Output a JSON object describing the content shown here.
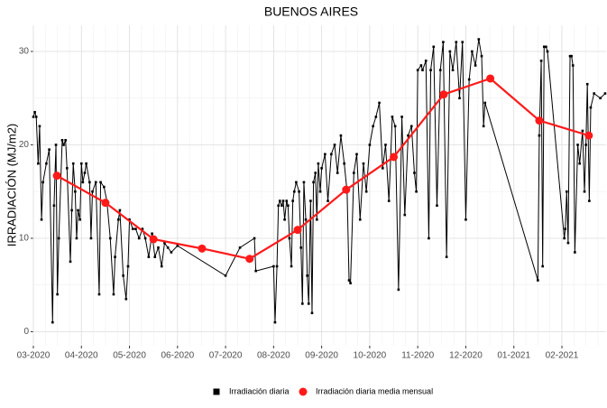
{
  "chart_data": {
    "type": "line",
    "title": "BUENOS AIRES",
    "y_label": "IRRADIACIÓN (MJ/m2)",
    "xlim": [
      0,
      11.92
    ],
    "ylim": [
      -1.5,
      32.8
    ],
    "grid": true,
    "legend": "bottom",
    "xticks": [
      {
        "value": 0,
        "label": "03-2020"
      },
      {
        "value": 1,
        "label": "04-2020"
      },
      {
        "value": 2,
        "label": "05-2020"
      },
      {
        "value": 3,
        "label": "06-2020"
      },
      {
        "value": 4,
        "label": "07-2020"
      },
      {
        "value": 5,
        "label": "08-2020"
      },
      {
        "value": 6,
        "label": "09-2020"
      },
      {
        "value": 7,
        "label": "10-2020"
      },
      {
        "value": 8,
        "label": "11-2020"
      },
      {
        "value": 9,
        "label": "12-2020"
      },
      {
        "value": 10,
        "label": "01-2021"
      },
      {
        "value": 11,
        "label": "02-2021"
      }
    ],
    "yticks": [
      0,
      10,
      20,
      30
    ],
    "series": [
      {
        "name": "Irradiación diaria",
        "color": "#000000",
        "marker": "square",
        "x": [
          0.0,
          0.03,
          0.06,
          0.1,
          0.13,
          0.17,
          0.2,
          0.27,
          0.33,
          0.4,
          0.43,
          0.47,
          0.5,
          0.53,
          0.6,
          0.63,
          0.67,
          0.7,
          0.77,
          0.8,
          0.83,
          0.87,
          0.9,
          0.93,
          0.97,
          1.0,
          1.03,
          1.07,
          1.1,
          1.17,
          1.2,
          1.23,
          1.3,
          1.37,
          1.4,
          1.47,
          1.53,
          1.6,
          1.67,
          1.7,
          1.77,
          1.8,
          1.87,
          1.93,
          1.97,
          2.0,
          2.07,
          2.13,
          2.2,
          2.27,
          2.33,
          2.4,
          2.47,
          2.53,
          2.6,
          2.67,
          2.73,
          2.8,
          2.87,
          3.0,
          4.0,
          4.3,
          4.6,
          4.63,
          5.0,
          5.03,
          5.07,
          5.1,
          5.13,
          5.17,
          5.2,
          5.23,
          5.27,
          5.3,
          5.33,
          5.37,
          5.4,
          5.43,
          5.47,
          5.53,
          5.57,
          5.6,
          5.63,
          5.67,
          5.7,
          5.73,
          5.77,
          5.8,
          5.83,
          5.87,
          5.9,
          5.93,
          5.97,
          6.0,
          6.07,
          6.13,
          6.2,
          6.27,
          6.33,
          6.4,
          6.47,
          6.53,
          6.57,
          6.6,
          6.67,
          6.73,
          6.8,
          6.87,
          6.93,
          7.0,
          7.07,
          7.13,
          7.2,
          7.27,
          7.33,
          7.4,
          7.47,
          7.53,
          7.6,
          7.67,
          7.73,
          7.8,
          7.87,
          7.93,
          7.97,
          8.0,
          8.07,
          8.1,
          8.17,
          8.23,
          8.27,
          8.33,
          8.4,
          8.47,
          8.53,
          8.6,
          8.67,
          8.73,
          8.8,
          8.87,
          8.93,
          9.0,
          9.07,
          9.13,
          9.2,
          9.27,
          9.33,
          9.37,
          9.4,
          10.5,
          10.53,
          10.57,
          10.6,
          10.63,
          10.67,
          10.7,
          11.05,
          11.07,
          11.1,
          11.13,
          11.17,
          11.2,
          11.23,
          11.27,
          11.33,
          11.37,
          11.43,
          11.47,
          11.5,
          11.53,
          11.57,
          11.6,
          11.67,
          11.8,
          11.9
        ],
        "values": [
          23,
          23.5,
          23,
          18,
          22,
          12,
          16,
          18,
          19.5,
          1,
          13.5,
          20,
          4,
          10,
          20.5,
          20,
          20.5,
          17.5,
          7.5,
          13,
          18,
          15,
          10,
          13,
          12,
          18,
          16,
          17,
          18,
          16,
          10,
          15,
          16,
          4,
          16,
          15.5,
          14,
          10,
          4,
          8,
          12,
          13,
          6,
          3.5,
          7,
          12,
          11,
          11,
          10,
          11,
          10,
          8,
          10.5,
          8,
          9,
          7,
          9.5,
          9,
          8.5,
          9.2,
          6,
          9,
          10,
          6.5,
          7,
          1,
          7,
          13.5,
          14,
          13.5,
          14,
          12,
          14,
          13.5,
          10,
          7,
          14,
          15,
          16,
          15,
          9,
          3,
          16,
          12,
          6,
          3,
          14,
          2,
          16,
          17,
          12,
          18,
          15,
          17.5,
          19,
          14,
          19,
          20,
          17,
          21,
          18,
          15,
          5.5,
          5.2,
          17,
          19,
          12,
          18,
          15,
          20,
          22,
          23,
          24.5,
          17.5,
          20,
          14,
          23,
          22,
          4.5,
          23,
          12.5,
          21,
          22,
          17,
          15,
          28,
          28.5,
          28,
          29,
          10,
          28,
          30.5,
          13.5,
          28,
          31,
          8,
          30,
          28,
          31,
          25,
          31,
          12,
          27,
          30,
          28.5,
          31.3,
          29.5,
          22,
          24.5,
          5.5,
          21,
          29,
          7,
          30.5,
          30.5,
          30,
          10,
          11,
          15,
          9.5,
          29.5,
          29.5,
          28.5,
          8.5,
          20,
          18,
          21.5,
          15,
          20,
          26.5,
          14,
          24,
          25.5,
          25,
          25.5
        ]
      },
      {
        "name": "Irradiación diaria media mensual",
        "color": "#ff1a1a",
        "marker": "circle",
        "x": [
          0.49,
          1.5,
          2.5,
          3.51,
          4.5,
          5.5,
          6.51,
          7.5,
          8.54,
          9.51,
          10.53,
          11.56
        ],
        "values": [
          16.7,
          13.8,
          9.9,
          8.9,
          7.8,
          10.9,
          15.2,
          18.7,
          25.4,
          27.1,
          22.6,
          21.0
        ]
      }
    ]
  }
}
